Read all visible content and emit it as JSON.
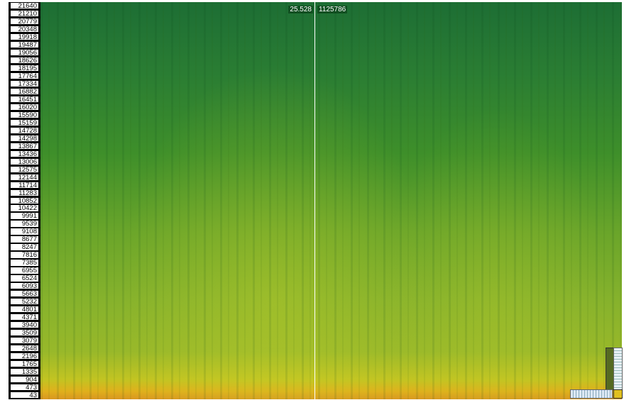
{
  "frequency_labels": [
    "21640",
    "21210",
    "20779",
    "20348",
    "19918",
    "19487",
    "19056",
    "18626",
    "18195",
    "17764",
    "17334",
    "16882",
    "16451",
    "16020",
    "15590",
    "15159",
    "14728",
    "14298",
    "13867",
    "13436",
    "13006",
    "12575",
    "12144",
    "11714",
    "11283",
    "10852",
    "10422",
    "9991",
    "9539",
    "9108",
    "8677",
    "8247",
    "7816",
    "7385",
    "6955",
    "6524",
    "6093",
    "5663",
    "5232",
    "4801",
    "4371",
    "3940",
    "3509",
    "3079",
    "2648",
    "2196",
    "1765",
    "1335",
    "904",
    "473",
    "43"
  ],
  "cursor": {
    "time": "25.528",
    "sample": "1125786"
  }
}
